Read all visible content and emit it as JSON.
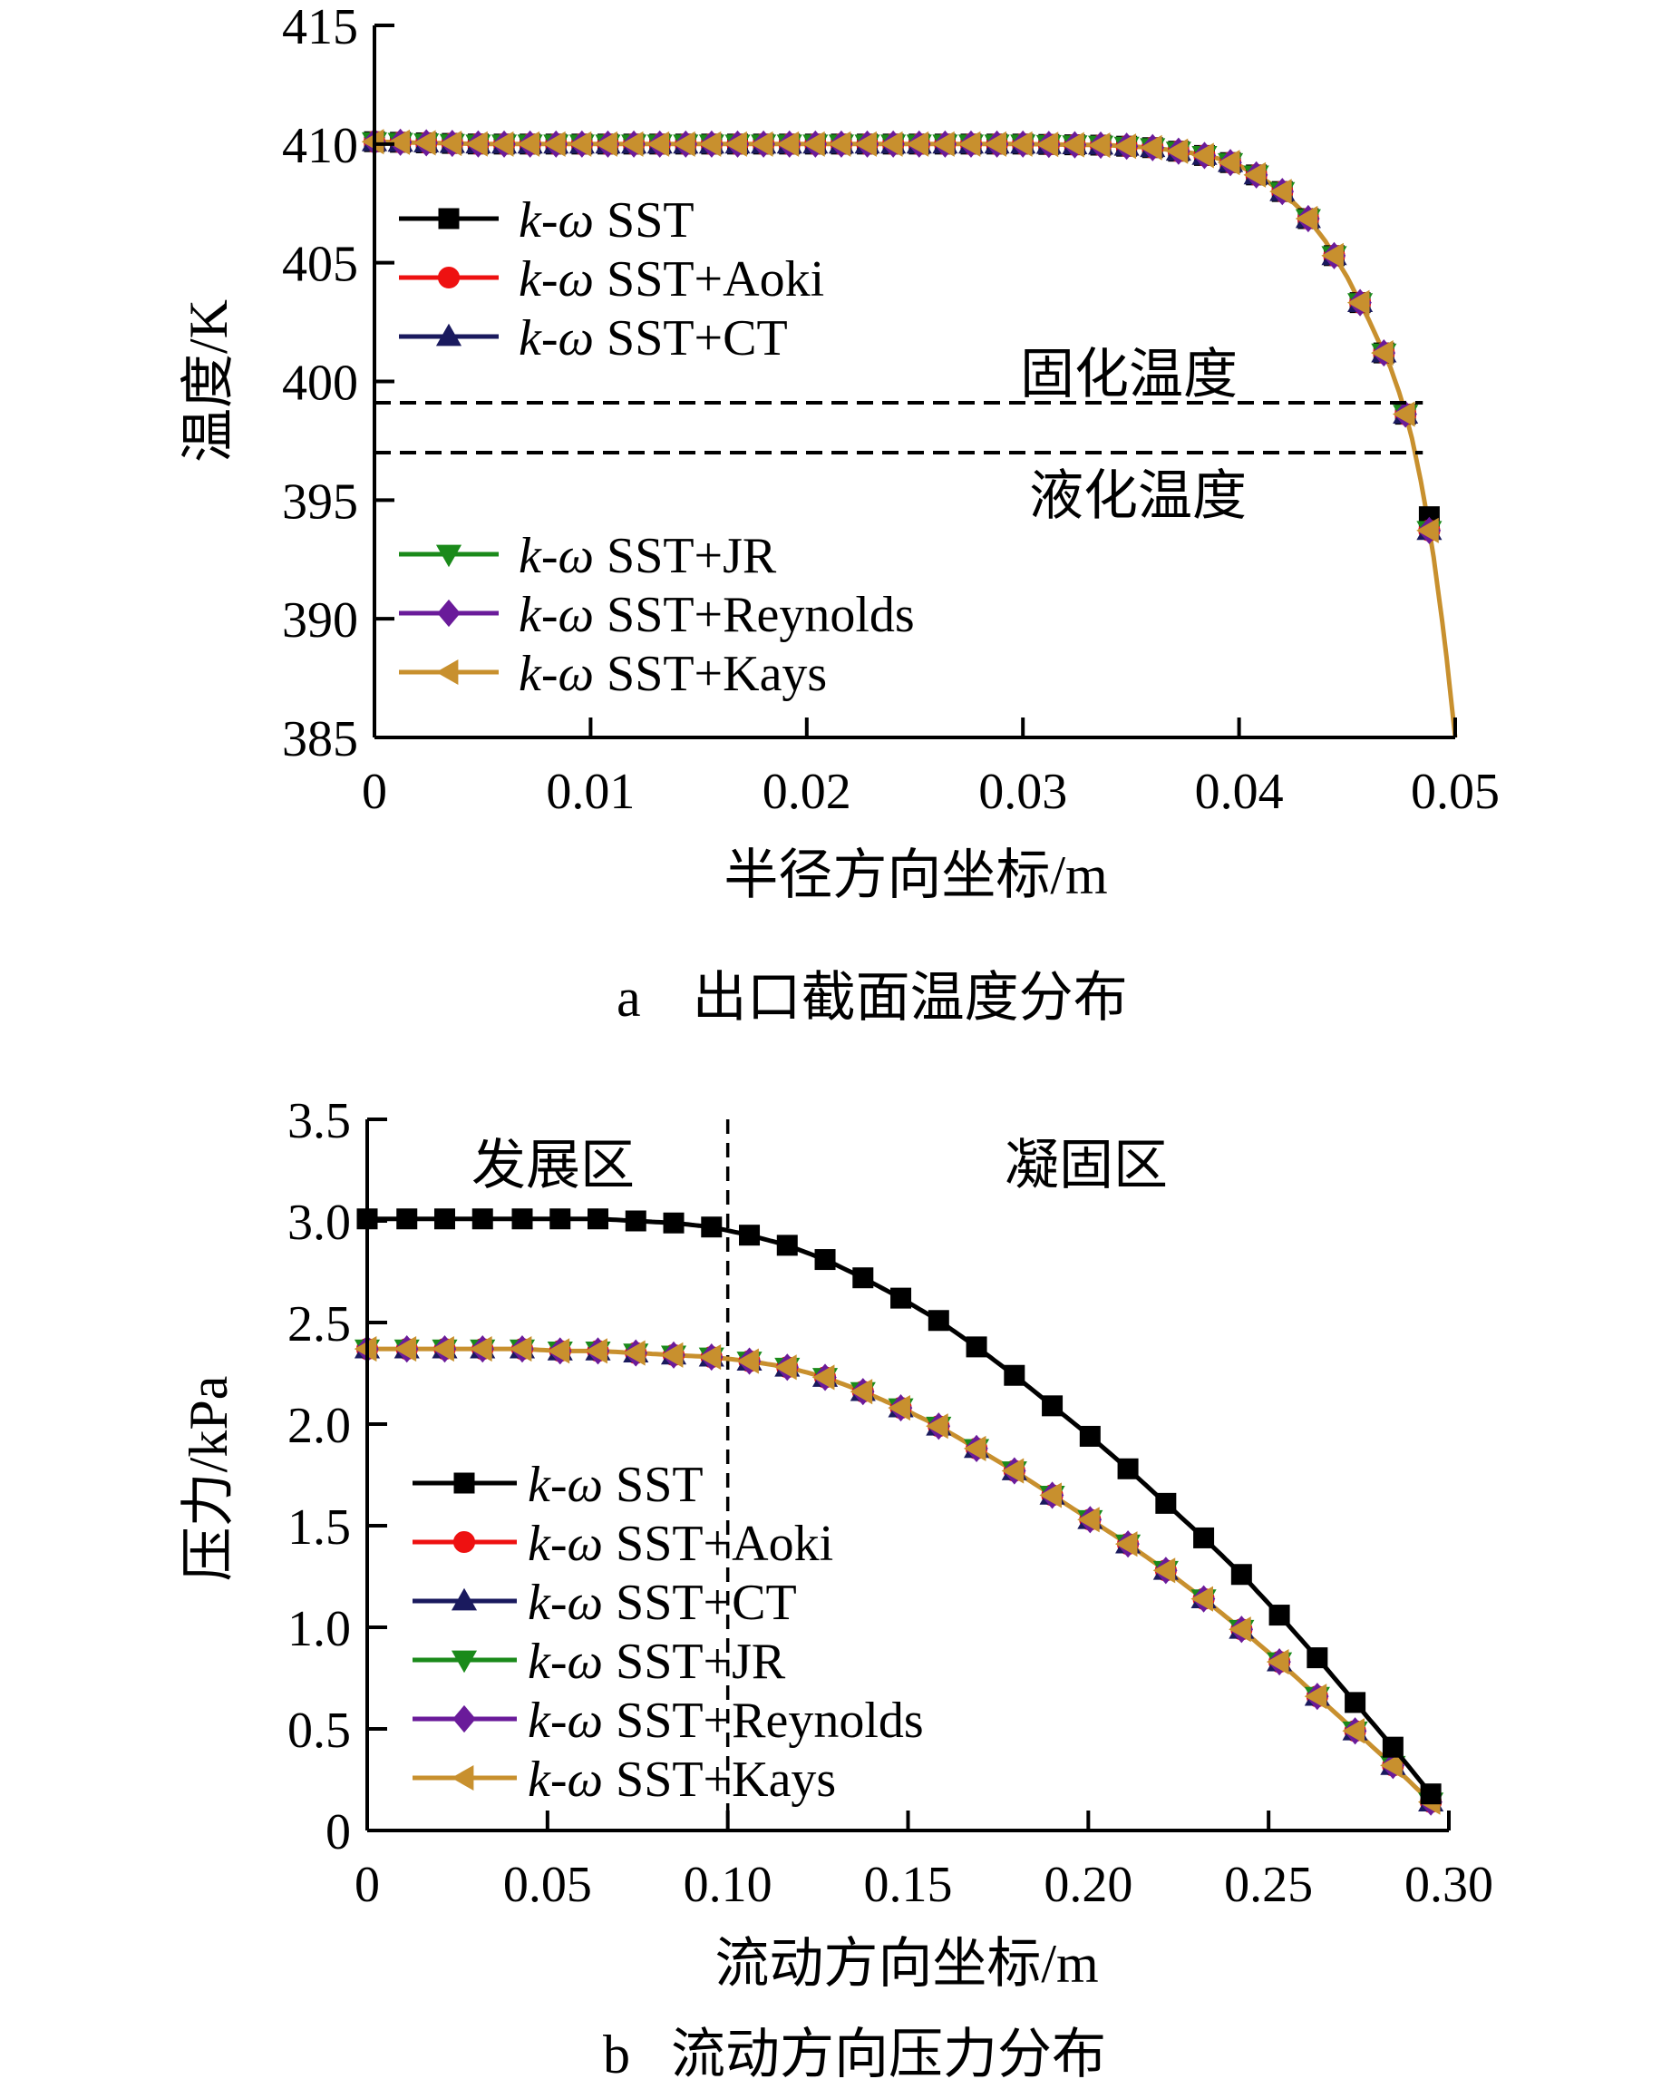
{
  "chart_data": [
    {
      "id": "chart-a",
      "type": "line",
      "caption_letter": "a",
      "caption_text": "出口截面温度分布",
      "xlabel": "半径方向坐标/m",
      "ylabel": "温度/K",
      "xlim": [
        0,
        0.05
      ],
      "ylim": [
        385,
        415
      ],
      "x_ticks": [
        "0",
        "0.01",
        "0.02",
        "0.03",
        "0.04",
        "0.05"
      ],
      "y_ticks": [
        "385",
        "390",
        "395",
        "400",
        "405",
        "410",
        "415"
      ],
      "ref_lines": [
        {
          "name": "固化温度",
          "y": 399.1
        },
        {
          "name": "液化温度",
          "y": 397.0
        }
      ],
      "curve": {
        "x": [
          0,
          0.005,
          0.01,
          0.015,
          0.02,
          0.025,
          0.03,
          0.034,
          0.036,
          0.038,
          0.039,
          0.04,
          0.041,
          0.042,
          0.043,
          0.044,
          0.045,
          0.046,
          0.047,
          0.0475,
          0.048,
          0.0485,
          0.049,
          0.0495,
          0.05
        ],
        "y": [
          410.1,
          410.0,
          410.0,
          410.0,
          410.0,
          410.0,
          410.0,
          409.95,
          409.85,
          409.6,
          409.4,
          409.1,
          408.6,
          408.0,
          407.1,
          405.9,
          404.4,
          402.6,
          400.6,
          399.3,
          397.6,
          395.4,
          392.6,
          389.2,
          385.0
        ]
      },
      "marker_x": [
        0,
        0.0012,
        0.0024,
        0.0036,
        0.0048,
        0.006,
        0.0072,
        0.0084,
        0.0096,
        0.0108,
        0.012,
        0.0132,
        0.0144,
        0.0156,
        0.0168,
        0.018,
        0.0192,
        0.0204,
        0.0216,
        0.0228,
        0.024,
        0.0252,
        0.0264,
        0.0276,
        0.0288,
        0.03,
        0.0312,
        0.0324,
        0.0336,
        0.0348,
        0.036,
        0.0372,
        0.0384,
        0.0396,
        0.0408,
        0.042,
        0.0432,
        0.0444,
        0.0456,
        0.0467,
        0.0477,
        0.0488
      ],
      "sst_outlier": {
        "x": 0.0488,
        "y": 394.3
      },
      "series": [
        {
          "name": "k-ω SST",
          "color": "#000000",
          "marker": "square"
        },
        {
          "name": "k-ω SST+Aoki",
          "color": "#ee1111",
          "marker": "circle"
        },
        {
          "name": "k-ω SST+CT",
          "color": "#1a1a5e",
          "marker": "triangle-up"
        },
        {
          "name": "k-ω SST+JR",
          "color": "#1a8a1a",
          "marker": "triangle-down"
        },
        {
          "name": "k-ω SST+Reynolds",
          "color": "#6a1b9a",
          "marker": "diamond"
        },
        {
          "name": "k-ω SST+Kays",
          "color": "#c8902e",
          "marker": "triangle-left"
        }
      ]
    },
    {
      "id": "chart-b",
      "type": "line",
      "caption_letter": "b",
      "caption_text": "流动方向压力分布",
      "xlabel": "流动方向坐标/m",
      "ylabel": "压力/kPa",
      "xlim": [
        0,
        0.3
      ],
      "ylim": [
        0,
        3.5
      ],
      "x_ticks": [
        "0",
        "0.05",
        "0.10",
        "0.15",
        "0.20",
        "0.25",
        "0.30"
      ],
      "y_ticks": [
        "0",
        "0.5",
        "1.0",
        "1.5",
        "2.0",
        "2.5",
        "3.0",
        "3.5"
      ],
      "divider_x": 0.1,
      "region_labels": [
        "发展区",
        "凝固区"
      ],
      "series": [
        {
          "name": "k-ω SST",
          "color": "#000000",
          "marker": "square",
          "x": [
            0,
            0.011,
            0.0215,
            0.032,
            0.043,
            0.0535,
            0.064,
            0.0745,
            0.085,
            0.0955,
            0.106,
            0.1165,
            0.127,
            0.1375,
            0.148,
            0.1585,
            0.169,
            0.1795,
            0.19,
            0.2005,
            0.211,
            0.2215,
            0.232,
            0.2425,
            0.253,
            0.2635,
            0.274,
            0.2845,
            0.295
          ],
          "y": [
            3.01,
            3.01,
            3.01,
            3.01,
            3.01,
            3.01,
            3.01,
            3.0,
            2.99,
            2.97,
            2.93,
            2.88,
            2.81,
            2.72,
            2.62,
            2.51,
            2.38,
            2.24,
            2.09,
            1.94,
            1.78,
            1.61,
            1.44,
            1.26,
            1.06,
            0.85,
            0.63,
            0.41,
            0.18
          ]
        },
        {
          "name": "k-ω SST+Aoki",
          "color": "#ee1111",
          "marker": "circle"
        },
        {
          "name": "k-ω SST+CT",
          "color": "#1a1a5e",
          "marker": "triangle-up"
        },
        {
          "name": "k-ω SST+JR",
          "color": "#1a8a1a",
          "marker": "triangle-down"
        },
        {
          "name": "k-ω SST+Reynolds",
          "color": "#6a1b9a",
          "marker": "diamond"
        },
        {
          "name": "k-ω SST+Kays",
          "color": "#c8902e",
          "marker": "triangle-left"
        }
      ],
      "lower_curve": {
        "x": [
          0,
          0.011,
          0.0215,
          0.032,
          0.043,
          0.0535,
          0.064,
          0.0745,
          0.085,
          0.0955,
          0.106,
          0.1165,
          0.127,
          0.1375,
          0.148,
          0.1585,
          0.169,
          0.1795,
          0.19,
          0.2005,
          0.211,
          0.2215,
          0.232,
          0.2425,
          0.253,
          0.2635,
          0.274,
          0.2845,
          0.295
        ],
        "y": [
          2.37,
          2.37,
          2.37,
          2.37,
          2.37,
          2.36,
          2.36,
          2.35,
          2.34,
          2.33,
          2.31,
          2.28,
          2.23,
          2.16,
          2.08,
          1.99,
          1.88,
          1.77,
          1.65,
          1.53,
          1.41,
          1.28,
          1.14,
          0.99,
          0.83,
          0.66,
          0.49,
          0.32,
          0.14
        ]
      }
    }
  ]
}
